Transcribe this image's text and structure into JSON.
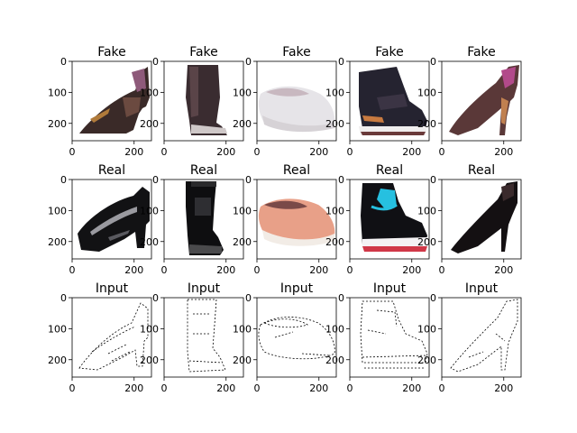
{
  "figure": {
    "panels": [
      {
        "title": "Fake",
        "image": "generated-high-heel-pump-brown",
        "xticks": [
          "0",
          "200"
        ],
        "yticks": [
          "0",
          "100",
          "200"
        ]
      },
      {
        "title": "Fake",
        "image": "generated-tall-boot-dark",
        "xticks": [
          "0",
          "200"
        ],
        "yticks": [
          "0",
          "100",
          "200"
        ]
      },
      {
        "title": "Fake",
        "image": "generated-slip-on-sneaker-white",
        "xticks": [
          "0",
          "200"
        ],
        "yticks": [
          "0",
          "100",
          "200"
        ]
      },
      {
        "title": "Fake",
        "image": "generated-high-top-sneaker-black",
        "xticks": [
          "0",
          "200"
        ],
        "yticks": [
          "0",
          "100",
          "200"
        ]
      },
      {
        "title": "Fake",
        "image": "generated-stiletto-pump-purple",
        "xticks": [
          "0",
          "200"
        ],
        "yticks": [
          "0",
          "100",
          "200"
        ]
      },
      {
        "title": "Real",
        "image": "black-patent-heeled-shoe",
        "xticks": [
          "0",
          "200"
        ],
        "yticks": [
          "0",
          "100",
          "200"
        ]
      },
      {
        "title": "Real",
        "image": "black-winter-boot",
        "xticks": [
          "0",
          "200"
        ],
        "yticks": [
          "0",
          "100",
          "200"
        ]
      },
      {
        "title": "Real",
        "image": "salmon-slip-on-canvas-shoe",
        "xticks": [
          "0",
          "200"
        ],
        "yticks": [
          "0",
          "100",
          "200"
        ]
      },
      {
        "title": "Real",
        "image": "black-high-top-sneaker-blue-laces",
        "xticks": [
          "0",
          "200"
        ],
        "yticks": [
          "0",
          "100",
          "200"
        ]
      },
      {
        "title": "Real",
        "image": "black-stiletto-pump",
        "xticks": [
          "0",
          "200"
        ],
        "yticks": [
          "0",
          "100",
          "200"
        ]
      },
      {
        "title": "Input",
        "image": "edge-map-heeled-shoe",
        "xticks": [
          "0",
          "200"
        ],
        "yticks": [
          "0",
          "100",
          "200"
        ]
      },
      {
        "title": "Input",
        "image": "edge-map-boot",
        "xticks": [
          "0",
          "200"
        ],
        "yticks": [
          "0",
          "100",
          "200"
        ]
      },
      {
        "title": "Input",
        "image": "edge-map-slip-on",
        "xticks": [
          "0",
          "200"
        ],
        "yticks": [
          "0",
          "100",
          "200"
        ]
      },
      {
        "title": "Input",
        "image": "edge-map-high-top-sneaker",
        "xticks": [
          "0",
          "200"
        ],
        "yticks": [
          "0",
          "100",
          "200"
        ]
      },
      {
        "title": "Input",
        "image": "edge-map-stiletto",
        "xticks": [
          "0",
          "200"
        ],
        "yticks": [
          "0",
          "100",
          "200"
        ]
      }
    ]
  }
}
